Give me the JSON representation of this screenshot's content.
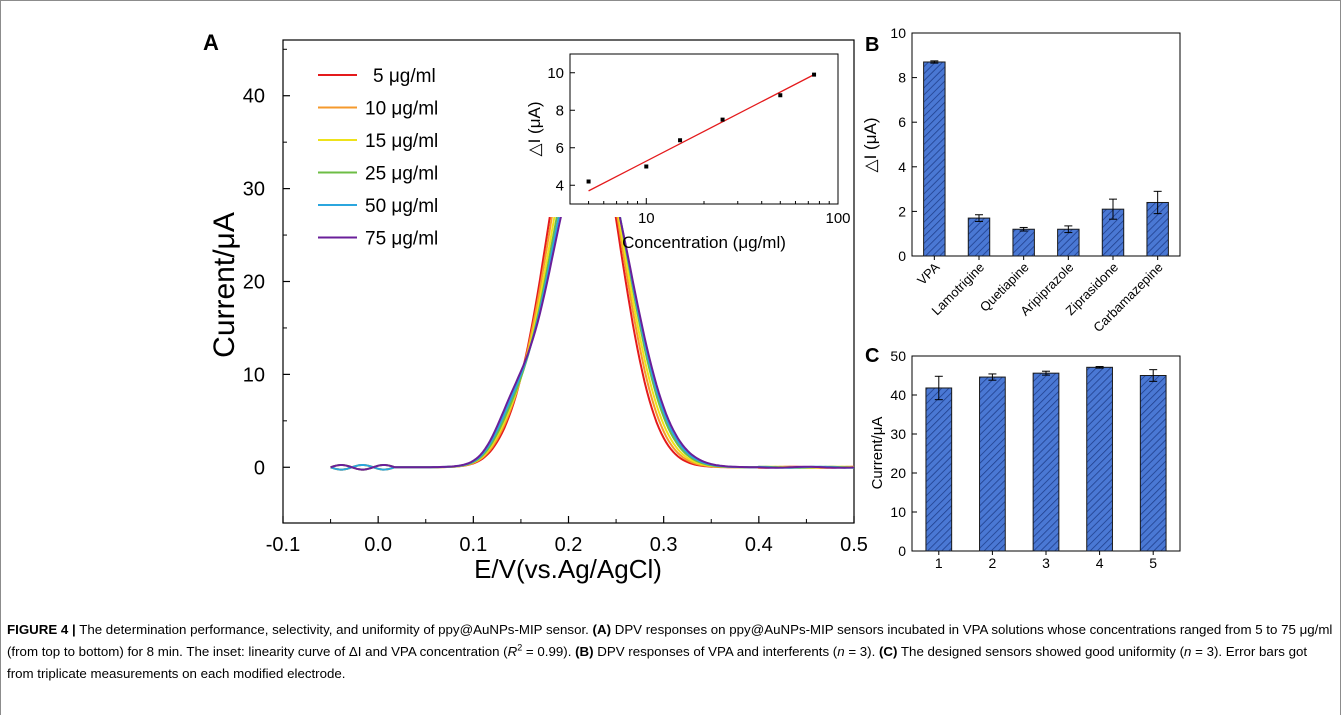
{
  "panels": {
    "a_label": "A",
    "b_label": "B",
    "c_label": "C"
  },
  "chart_data": [
    {
      "panel": "A",
      "type": "line",
      "xlabel": "E/V(vs.Ag/AgCl)",
      "ylabel": "Current/μA",
      "xlim": [
        -0.1,
        0.5
      ],
      "ylim": [
        -6,
        46
      ],
      "xticks": [
        "-0.1",
        "0.0",
        "0.1",
        "0.2",
        "0.3",
        "0.4",
        "0.5"
      ],
      "yticks": [
        "0",
        "10",
        "20",
        "30",
        "40"
      ],
      "legend_position": "top-left",
      "series": [
        {
          "name": "5 μg/ml",
          "color": "#e41a1c",
          "peak": 41.3,
          "peak_x": 0.215
        },
        {
          "name": "10 μg/ml",
          "color": "#f59a2c",
          "peak": 40.3,
          "peak_x": 0.217
        },
        {
          "name": "15 μg/ml",
          "color": "#eee21a",
          "peak": 39.0,
          "peak_x": 0.219
        },
        {
          "name": "25 μg/ml",
          "color": "#6dbd45",
          "peak": 38.0,
          "peak_x": 0.221
        },
        {
          "name": "50 μg/ml",
          "color": "#2ba6de",
          "peak": 36.7,
          "peak_x": 0.222
        },
        {
          "name": "75 μg/ml",
          "color": "#6a1f9a",
          "peak": 35.5,
          "peak_x": 0.223
        }
      ],
      "inset": {
        "type": "scatter",
        "xlabel": "Concentration (μg/ml)",
        "ylabel": "△I (μA)",
        "xscale": "log",
        "xlim": [
          4,
          100
        ],
        "ylim": [
          3,
          11
        ],
        "xticks": [
          "10",
          "100"
        ],
        "yticks": [
          "4",
          "6",
          "8",
          "10"
        ],
        "points": [
          {
            "x": 5,
            "y": 4.2
          },
          {
            "x": 10,
            "y": 5.0
          },
          {
            "x": 15,
            "y": 6.4
          },
          {
            "x": 25,
            "y": 7.5
          },
          {
            "x": 50,
            "y": 8.8
          },
          {
            "x": 75,
            "y": 9.9
          }
        ],
        "fit_line": {
          "color": "#e41a1c",
          "from": {
            "x": 5,
            "y": 3.7
          },
          "to": {
            "x": 75,
            "y": 9.9
          }
        }
      }
    },
    {
      "panel": "B",
      "type": "bar",
      "ylabel": "△I (μA)",
      "ylim": [
        0,
        10
      ],
      "yticks": [
        "0",
        "2",
        "4",
        "6",
        "8",
        "10"
      ],
      "categories": [
        "VPA",
        "Lamotrigine",
        "Quetiapine",
        "Aripiprazole",
        "Ziprasidone",
        "Carbamazepine"
      ],
      "values": [
        8.7,
        1.7,
        1.2,
        1.2,
        2.1,
        2.4
      ],
      "errors": [
        0.05,
        0.15,
        0.08,
        0.15,
        0.45,
        0.5
      ],
      "bar_color": "#4a78d4"
    },
    {
      "panel": "C",
      "type": "bar",
      "ylabel": "Current/μA",
      "ylim": [
        0,
        50
      ],
      "yticks": [
        "0",
        "10",
        "20",
        "30",
        "40",
        "50"
      ],
      "categories": [
        "1",
        "2",
        "3",
        "4",
        "5"
      ],
      "values": [
        41.8,
        44.6,
        45.6,
        47.1,
        45.0
      ],
      "errors": [
        3.0,
        0.8,
        0.5,
        0.2,
        1.5
      ],
      "bar_color": "#4a78d4"
    }
  ],
  "caption": {
    "lead": "FIGURE 4 |",
    "t1": " The determination performance, selectivity, and uniformity of ppy@AuNPs-MIP sensor. ",
    "a": "(A)",
    "t2": " DPV responses on ppy@AuNPs-MIP sensors incubated in VPA solutions whose concentrations ranged from 5 to 75 μg/ml (from top to bottom) for 8 min. The inset: linearity curve of ΔI and VPA concentration (",
    "r": "R",
    "sup": "2",
    "t3": " = 0.99). ",
    "b": "(B)",
    "t4": " DPV responses of VPA and interferents (",
    "n1": "n",
    "t5": " = 3). ",
    "c": "(C)",
    "t6": " The designed sensors showed good uniformity (",
    "n2": "n",
    "t7": " = 3). Error bars got from triplicate measurements on each modified electrode."
  }
}
